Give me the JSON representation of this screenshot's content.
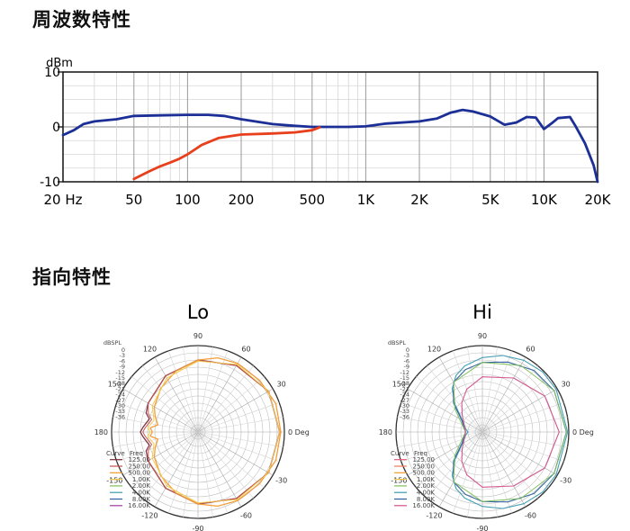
{
  "headings": {
    "frequency_response": "周波数特性",
    "polar_pattern": "指向特性"
  },
  "chart_data": [
    {
      "type": "line",
      "title": "周波数特性",
      "ylabel": "dBm",
      "xscale": "log",
      "xlim": [
        20,
        20000
      ],
      "ylim": [
        -10,
        10
      ],
      "ytick_labels": [
        "10",
        "0",
        "-10"
      ],
      "yticks": [
        10,
        0,
        -10
      ],
      "xtick_labels": [
        "20 Hz",
        "50",
        "100",
        "200",
        "500",
        "1K",
        "2K",
        "5K",
        "10K",
        "20K"
      ],
      "xticks": [
        20,
        50,
        100,
        200,
        500,
        1000,
        2000,
        5000,
        10000,
        20000
      ],
      "grid": true,
      "colors": {
        "main": "#1c2f97",
        "lowcut": "#e8401c"
      },
      "series": [
        {
          "key": "main",
          "x": [
            20,
            23,
            26,
            30,
            40,
            50,
            70,
            100,
            130,
            160,
            200,
            300,
            400,
            500,
            600,
            800,
            1000,
            1300,
            2000,
            2500,
            3000,
            3500,
            4000,
            5000,
            6000,
            7000,
            8000,
            9000,
            10000,
            11000,
            12000,
            14000,
            15000,
            17000,
            19000,
            20000
          ],
          "y": [
            -1.5,
            -0.6,
            0.5,
            1,
            1.4,
            2,
            2.1,
            2.2,
            2.2,
            2,
            1.4,
            0.5,
            0.2,
            0,
            0,
            0,
            0.1,
            0.6,
            1,
            1.5,
            2.6,
            3.1,
            2.8,
            1.9,
            0.4,
            0.8,
            1.8,
            1.7,
            -0.4,
            0.6,
            1.6,
            1.8,
            0.2,
            -3,
            -7,
            -10
          ]
        },
        {
          "key": "lowcut",
          "x": [
            50,
            60,
            70,
            80,
            90,
            100,
            120,
            150,
            200,
            300,
            400,
            500,
            550
          ],
          "y": [
            -9.5,
            -8.2,
            -7.2,
            -6.5,
            -5.8,
            -5,
            -3.3,
            -2,
            -1.4,
            -1.2,
            -1,
            -0.6,
            -0.1
          ]
        }
      ]
    },
    {
      "type": "polar",
      "title": "Lo",
      "unit_label": "dBSPL",
      "r_tick_labels": [
        "0",
        "-3",
        "-6",
        "-9",
        "-12",
        "-15",
        "-18",
        "-21",
        "-24",
        "-27",
        "-30",
        "-33",
        "-36"
      ],
      "r_ticks": [
        0,
        -3,
        -6,
        -9,
        -12,
        -15,
        -18,
        -21,
        -24,
        -27,
        -30,
        -33,
        -36
      ],
      "angle_labels": [
        "0 Deg",
        "30",
        "60",
        "90",
        "120",
        "150",
        "180",
        "-150",
        "-120",
        "-90",
        "-60",
        "-30"
      ],
      "angles": [
        0,
        30,
        60,
        90,
        120,
        150,
        180,
        -150,
        -120,
        -90,
        -60,
        -30
      ],
      "legend_header": [
        "Curve",
        "Freq"
      ],
      "legend": [
        {
          "freq": "125.00",
          "color": "#7a2a3a"
        },
        {
          "freq": "250.00",
          "color": "#c0504a"
        },
        {
          "freq": "500.00",
          "color": "#f29a2e"
        },
        {
          "freq": "1.00K",
          "color": "#f3c94a"
        },
        {
          "freq": "2.00K",
          "color": "#7fbf5a"
        },
        {
          "freq": "4.00K",
          "color": "#3a9ab0"
        },
        {
          "freq": "8.00K",
          "color": "#2c5f9e"
        },
        {
          "freq": "16.00K",
          "color": "#9a3c9a"
        }
      ],
      "curves": [
        {
          "color": "#7a2a3a",
          "width": 1.3,
          "pts": [
            [
              0,
              -2
            ],
            [
              30,
              -2
            ],
            [
              60,
              -4
            ],
            [
              90,
              -6
            ],
            [
              120,
              -9
            ],
            [
              150,
              -12
            ],
            [
              160,
              -13
            ],
            [
              165,
              -15
            ],
            [
              175,
              -13
            ],
            [
              180,
              -12
            ],
            [
              -175,
              -13
            ],
            [
              -165,
              -15
            ],
            [
              -160,
              -13
            ],
            [
              -150,
              -12
            ],
            [
              -120,
              -9
            ],
            [
              -90,
              -6
            ],
            [
              -60,
              -4
            ],
            [
              -30,
              -2
            ]
          ]
        },
        {
          "color": "#c0504a",
          "width": 1.0,
          "pts": [
            [
              0,
              -2
            ],
            [
              30,
              -2
            ],
            [
              60,
              -4
            ],
            [
              90,
              -6
            ],
            [
              120,
              -9
            ],
            [
              150,
              -12
            ],
            [
              160,
              -14
            ],
            [
              165,
              -16
            ],
            [
              175,
              -14
            ],
            [
              180,
              -13
            ],
            [
              -175,
              -14
            ],
            [
              -165,
              -16
            ],
            [
              -160,
              -14
            ],
            [
              -150,
              -12
            ],
            [
              -120,
              -9
            ],
            [
              -90,
              -6
            ],
            [
              -60,
              -4
            ],
            [
              -30,
              -2
            ]
          ]
        },
        {
          "color": "#f29a2e",
          "width": 1.3,
          "pts": [
            [
              0,
              -1.5
            ],
            [
              20,
              -1.5
            ],
            [
              40,
              -2.5
            ],
            [
              60,
              -3
            ],
            [
              75,
              -4
            ],
            [
              90,
              -6
            ],
            [
              110,
              -9
            ],
            [
              130,
              -12
            ],
            [
              150,
              -15
            ],
            [
              160,
              -17
            ],
            [
              170,
              -19
            ],
            [
              175,
              -16
            ],
            [
              180,
              -17
            ],
            [
              -175,
              -16
            ],
            [
              -170,
              -19
            ],
            [
              -160,
              -17
            ],
            [
              -150,
              -15
            ],
            [
              -130,
              -12
            ],
            [
              -110,
              -9
            ],
            [
              -90,
              -6
            ],
            [
              -75,
              -4
            ],
            [
              -60,
              -3
            ],
            [
              -40,
              -2.5
            ],
            [
              -20,
              -1.5
            ]
          ]
        },
        {
          "color": "#f3c94a",
          "width": 1.0,
          "pts": [
            [
              0,
              -2
            ],
            [
              30,
              -2
            ],
            [
              60,
              -3.5
            ],
            [
              90,
              -6.5
            ],
            [
              120,
              -10
            ],
            [
              150,
              -14
            ],
            [
              165,
              -17
            ],
            [
              175,
              -15
            ],
            [
              180,
              -16
            ],
            [
              -175,
              -15
            ],
            [
              -165,
              -17
            ],
            [
              -150,
              -14
            ],
            [
              -120,
              -10
            ],
            [
              -90,
              -6.5
            ],
            [
              -60,
              -3.5
            ],
            [
              -30,
              -2
            ]
          ]
        }
      ]
    },
    {
      "type": "polar",
      "title": "Hi",
      "unit_label": "dBSPL",
      "r_tick_labels": [
        "0",
        "-3",
        "-6",
        "-9",
        "-12",
        "-15",
        "-18",
        "-21",
        "-24",
        "-27",
        "-30",
        "-33",
        "-36"
      ],
      "r_ticks": [
        0,
        -3,
        -6,
        -9,
        -12,
        -15,
        -18,
        -21,
        -24,
        -27,
        -30,
        -33,
        -36
      ],
      "angle_labels": [
        "0 Deg",
        "30",
        "60",
        "90",
        "120",
        "150",
        "180",
        "-150",
        "-120",
        "-90",
        "-60",
        "-30"
      ],
      "angles": [
        0,
        30,
        60,
        90,
        120,
        150,
        180,
        -150,
        -120,
        -90,
        -60,
        -30
      ],
      "legend_header": [
        "Curve",
        "Freq"
      ],
      "legend": [
        {
          "freq": "125.00",
          "color": "#e25a78"
        },
        {
          "freq": "250.00",
          "color": "#f07a5a"
        },
        {
          "freq": "500.00",
          "color": "#f29a2e"
        },
        {
          "freq": "1.00K",
          "color": "#f3c94a"
        },
        {
          "freq": "2.00K",
          "color": "#7fbf5a"
        },
        {
          "freq": "4.00K",
          "color": "#3a9ab0"
        },
        {
          "freq": "8.00K",
          "color": "#2c5f9e"
        },
        {
          "freq": "16.00K",
          "color": "#d0508a"
        }
      ],
      "curves": [
        {
          "color": "#3a9ab0",
          "width": 1.1,
          "pts": [
            [
              0,
              -0.5
            ],
            [
              30,
              -0.5
            ],
            [
              45,
              -0.6
            ],
            [
              60,
              -1.5
            ],
            [
              75,
              -3
            ],
            [
              90,
              -5
            ],
            [
              105,
              -7.5
            ],
            [
              115,
              -10
            ],
            [
              125,
              -14
            ],
            [
              135,
              -20
            ],
            [
              145,
              -25
            ],
            [
              160,
              -28
            ],
            [
              170,
              -29
            ],
            [
              180,
              -30
            ],
            [
              -170,
              -29
            ],
            [
              -160,
              -28
            ],
            [
              -145,
              -25
            ],
            [
              -135,
              -20
            ],
            [
              -125,
              -14
            ],
            [
              -115,
              -10
            ],
            [
              -105,
              -7.5
            ],
            [
              -90,
              -5
            ],
            [
              -75,
              -3
            ],
            [
              -60,
              -1.5
            ],
            [
              -45,
              -0.6
            ],
            [
              -30,
              -0.5
            ]
          ]
        },
        {
          "color": "#2c5f9e",
          "width": 1.1,
          "pts": [
            [
              0,
              -1
            ],
            [
              30,
              -1.5
            ],
            [
              50,
              -2.5
            ],
            [
              70,
              -5
            ],
            [
              90,
              -7
            ],
            [
              105,
              -9
            ],
            [
              120,
              -12
            ],
            [
              135,
              -19
            ],
            [
              150,
              -26
            ],
            [
              165,
              -28
            ],
            [
              180,
              -29
            ],
            [
              -165,
              -28
            ],
            [
              -150,
              -26
            ],
            [
              -135,
              -19
            ],
            [
              -120,
              -12
            ],
            [
              -105,
              -9
            ],
            [
              -90,
              -7
            ],
            [
              -70,
              -5
            ],
            [
              -50,
              -2.5
            ],
            [
              -30,
              -1.5
            ]
          ]
        },
        {
          "color": "#7fbf5a",
          "width": 1.0,
          "pts": [
            [
              0,
              -1
            ],
            [
              30,
              -1.5
            ],
            [
              60,
              -4
            ],
            [
              90,
              -7
            ],
            [
              120,
              -12
            ],
            [
              140,
              -21
            ],
            [
              160,
              -27
            ],
            [
              180,
              -29
            ],
            [
              -160,
              -27
            ],
            [
              -140,
              -21
            ],
            [
              -120,
              -12
            ],
            [
              -90,
              -7
            ],
            [
              -60,
              -4
            ],
            [
              -30,
              -1.5
            ]
          ]
        },
        {
          "color": "#d0508a",
          "width": 1.1,
          "pts": [
            [
              0,
              -4
            ],
            [
              30,
              -6
            ],
            [
              60,
              -10
            ],
            [
              90,
              -13
            ],
            [
              110,
              -17
            ],
            [
              125,
              -21
            ],
            [
              140,
              -25
            ],
            [
              160,
              -28
            ],
            [
              180,
              -29
            ],
            [
              -160,
              -28
            ],
            [
              -140,
              -25
            ],
            [
              -125,
              -21
            ],
            [
              -110,
              -17
            ],
            [
              -90,
              -13
            ],
            [
              -60,
              -10
            ],
            [
              -30,
              -6
            ]
          ]
        }
      ]
    }
  ]
}
